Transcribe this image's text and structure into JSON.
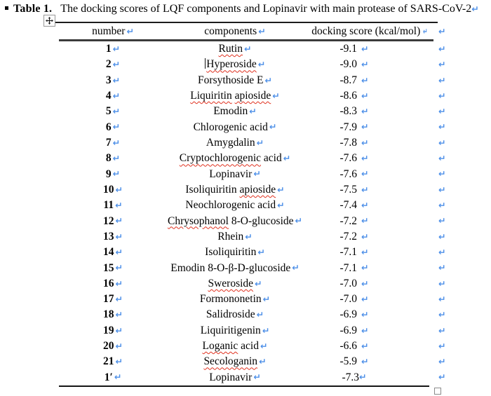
{
  "title": {
    "label": "Table 1.",
    "text": "The docking scores of LQF components and Lopinavir with main protease of SARS-CoV-2"
  },
  "marks": {
    "cell_end": "↵",
    "row_end": "↵"
  },
  "colors": {
    "mark_blue": "#4E90E8",
    "squiggle_red": "#E0301E",
    "border_dark": "#1c1c1c",
    "header_rule_gray": "#3c3c3c"
  },
  "table": {
    "headers": [
      {
        "label": "number"
      },
      {
        "label": "components"
      },
      {
        "label": "docking score (kcal/mol)"
      }
    ],
    "rows": [
      {
        "number": "1",
        "component": [
          {
            "text": "Rutin",
            "misspelled": true
          }
        ],
        "score": "-9.1"
      },
      {
        "number": "2",
        "component": [
          {
            "text": "Hyperoside",
            "misspelled": true
          }
        ],
        "score": "-9.0",
        "cursor": true
      },
      {
        "number": "3",
        "component": [
          {
            "text": "Forsythoside E",
            "misspelled": false
          }
        ],
        "score": "-8.7"
      },
      {
        "number": "4",
        "component": [
          {
            "text": "Liquiritin",
            "misspelled": true
          },
          {
            "text": " ",
            "misspelled": false
          },
          {
            "text": "apioside",
            "misspelled": true
          }
        ],
        "score": "-8.6"
      },
      {
        "number": "5",
        "component": [
          {
            "text": "Emodin",
            "misspelled": false
          }
        ],
        "score": "-8.3"
      },
      {
        "number": "6",
        "component": [
          {
            "text": "Chlorogenic acid",
            "misspelled": false
          }
        ],
        "score": "-7.9"
      },
      {
        "number": "7",
        "component": [
          {
            "text": "Amygdalin",
            "misspelled": false
          }
        ],
        "score": "-7.8"
      },
      {
        "number": "8",
        "component": [
          {
            "text": "Cryptochlorogenic",
            "misspelled": true
          },
          {
            "text": " acid",
            "misspelled": false
          }
        ],
        "score": "-7.6"
      },
      {
        "number": "9",
        "component": [
          {
            "text": "Lopinavir",
            "misspelled": false
          }
        ],
        "score": "-7.6"
      },
      {
        "number": "10",
        "component": [
          {
            "text": "Isoliquiritin ",
            "misspelled": false
          },
          {
            "text": "apioside",
            "misspelled": true
          }
        ],
        "score": "-7.5"
      },
      {
        "number": "11",
        "component": [
          {
            "text": "Neochlorogenic acid",
            "misspelled": false
          }
        ],
        "score": "-7.4"
      },
      {
        "number": "12",
        "component": [
          {
            "text": "Chrysophanol",
            "misspelled": true
          },
          {
            "text": " 8-O-glucoside",
            "misspelled": false
          }
        ],
        "score": "-7.2"
      },
      {
        "number": "13",
        "component": [
          {
            "text": "Rhein",
            "misspelled": false
          }
        ],
        "score": "-7.2"
      },
      {
        "number": "14",
        "component": [
          {
            "text": "Isoliquiritin",
            "misspelled": false
          }
        ],
        "score": "-7.1"
      },
      {
        "number": "15",
        "component": [
          {
            "text": "Emodin 8-O-β-D-glucoside",
            "misspelled": false
          }
        ],
        "score": "-7.1"
      },
      {
        "number": "16",
        "component": [
          {
            "text": "Sweroside",
            "misspelled": true
          }
        ],
        "score": "-7.0"
      },
      {
        "number": "17",
        "component": [
          {
            "text": "Formononetin",
            "misspelled": false
          }
        ],
        "score": "-7.0"
      },
      {
        "number": "18",
        "component": [
          {
            "text": "Salidroside",
            "misspelled": false
          }
        ],
        "score": "-6.9"
      },
      {
        "number": "19",
        "component": [
          {
            "text": "Liquiritigenin",
            "misspelled": false
          }
        ],
        "score": "-6.9"
      },
      {
        "number": "20",
        "component": [
          {
            "text": "Loganic",
            "misspelled": true
          },
          {
            "text": " acid",
            "misspelled": false
          }
        ],
        "score": "-6.6"
      },
      {
        "number": "21",
        "component": [
          {
            "text": "Secologanin",
            "misspelled": true
          }
        ],
        "score": "-5.9"
      },
      {
        "number": "1′",
        "component": [
          {
            "text": "Lopinavir",
            "misspelled": false
          }
        ],
        "score": "-7.3",
        "tight_mark": true
      }
    ]
  }
}
